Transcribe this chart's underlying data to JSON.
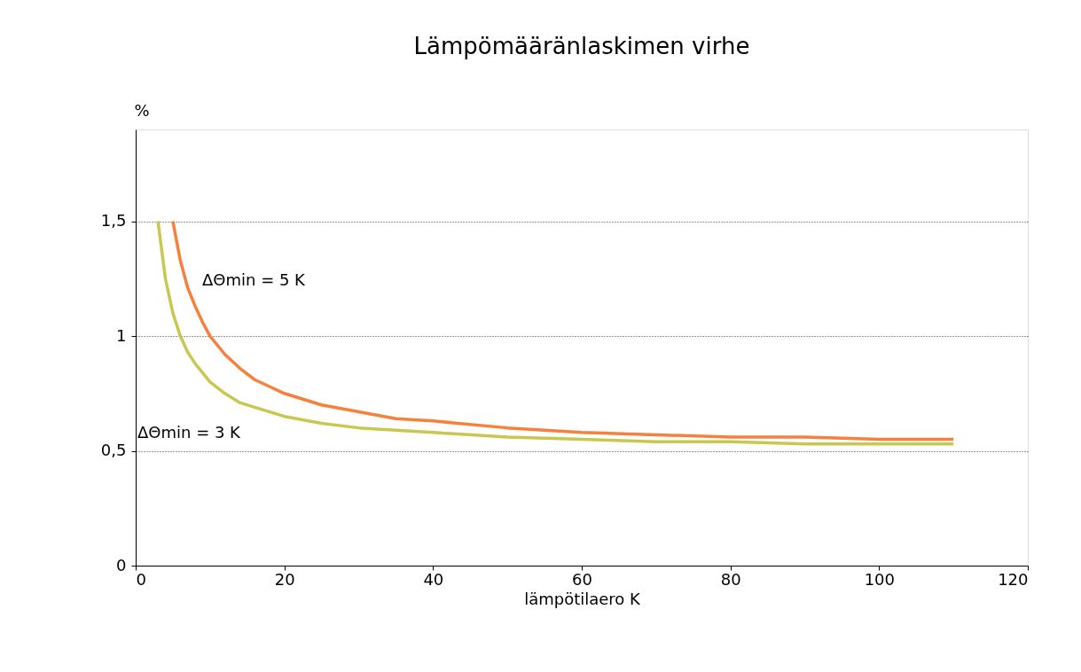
{
  "chart_data": {
    "type": "line",
    "title": "Lämpömääränlaskimen virhe",
    "xlabel": "lämpötilaero K",
    "ylabel": "%",
    "xlim": [
      0,
      120
    ],
    "xticks": [
      0,
      20,
      40,
      60,
      80,
      100,
      120
    ],
    "ylim": [
      0,
      1.9
    ],
    "yticks": [
      0,
      {
        "value": 0.5,
        "label": "0,5"
      },
      1,
      {
        "value": 1.5,
        "label": "1,5"
      }
    ],
    "grid": "y",
    "line_style": "solid",
    "marker": "none",
    "legend": false,
    "series": [
      {
        "color": "#f7803c",
        "x": [
          5,
          6,
          7,
          8,
          9,
          10,
          12,
          14,
          16,
          18,
          20,
          25,
          30,
          35,
          40,
          50,
          60,
          70,
          80,
          90,
          100,
          110
        ],
        "values": [
          1.5,
          1.33,
          1.21,
          1.13,
          1.06,
          1.0,
          0.92,
          0.86,
          0.81,
          0.78,
          0.75,
          0.7,
          0.67,
          0.64,
          0.63,
          0.6,
          0.58,
          0.57,
          0.56,
          0.56,
          0.55,
          0.55
        ]
      },
      {
        "color": "#c8c850",
        "x": [
          3,
          4,
          5,
          6,
          7,
          8,
          10,
          12,
          14,
          16,
          20,
          25,
          30,
          40,
          50,
          60,
          70,
          80,
          90,
          100,
          110
        ],
        "values": [
          1.5,
          1.25,
          1.1,
          1.0,
          0.93,
          0.88,
          0.8,
          0.75,
          0.71,
          0.69,
          0.65,
          0.62,
          0.6,
          0.58,
          0.56,
          0.55,
          0.54,
          0.54,
          0.53,
          0.53,
          0.53
        ]
      }
    ],
    "annotations": [
      "ΔΘmin = 5 K",
      "ΔΘmin = 3 K"
    ]
  }
}
